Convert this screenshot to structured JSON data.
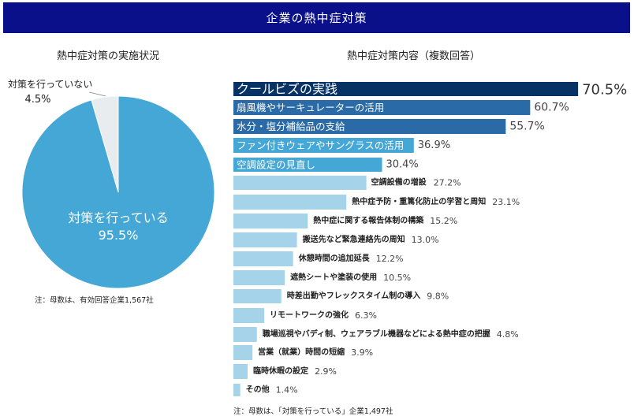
{
  "header": {
    "title": "企業の熱中症対策"
  },
  "colors": {
    "header_bg": "#0a0f8a",
    "pie_yes": "#45a7d5",
    "pie_no": "#e8ecef",
    "bar_top": "#073264",
    "bar_dark": "#2a6aa6",
    "bar_mid": "#45a7d5",
    "bar_light": "#a5d4ea"
  },
  "chart_data": [
    {
      "type": "pie",
      "title": "熱中症対策の実施状況",
      "slices": [
        {
          "label": "対策を行っている",
          "value": 95.5,
          "display": "95.5%"
        },
        {
          "label": "対策を行っていない",
          "value": 4.5,
          "display": "4.5%"
        }
      ],
      "note": "注：母数は、有効回答企業1,567社"
    },
    {
      "type": "bar",
      "orientation": "horizontal",
      "title": "熱中症対策内容（複数回答）",
      "categories": [
        "クールビズの実践",
        "扇風機やサーキュレーターの活用",
        "水分・塩分補給品の支給",
        "ファン付きウェアやサングラスの活用",
        "空調設定の見直し",
        "空調設備の増設",
        "熱中症予防・重篤化防止の学習と周知",
        "熱中症に関する報告体制の構築",
        "搬送先など緊急連絡先の周知",
        "休憩時間の追加延長",
        "遮熱シートや塗装の使用",
        "時差出勤やフレックスタイム制の導入",
        "リモートワークの強化",
        "職場巡視やバディ制、ウェアラブル機器などによる熱中症の把握",
        "営業（就業）時間の短縮",
        "臨時休暇の設定",
        "その他"
      ],
      "values": [
        70.5,
        60.7,
        55.7,
        36.9,
        30.4,
        27.2,
        23.1,
        15.2,
        13.0,
        12.2,
        10.5,
        9.8,
        6.3,
        4.8,
        3.9,
        2.9,
        1.4
      ],
      "value_labels": [
        "70.5%",
        "60.7%",
        "55.7%",
        "36.9%",
        "30.4%",
        "27.2%",
        "23.1%",
        "15.2%",
        "13.0%",
        "12.2%",
        "10.5%",
        "9.8%",
        "6.3%",
        "4.8%",
        "3.9%",
        "2.9%",
        "1.4%"
      ],
      "unit": "%",
      "note": "注：母数は、「対策を行っている」企業1,497社"
    }
  ]
}
